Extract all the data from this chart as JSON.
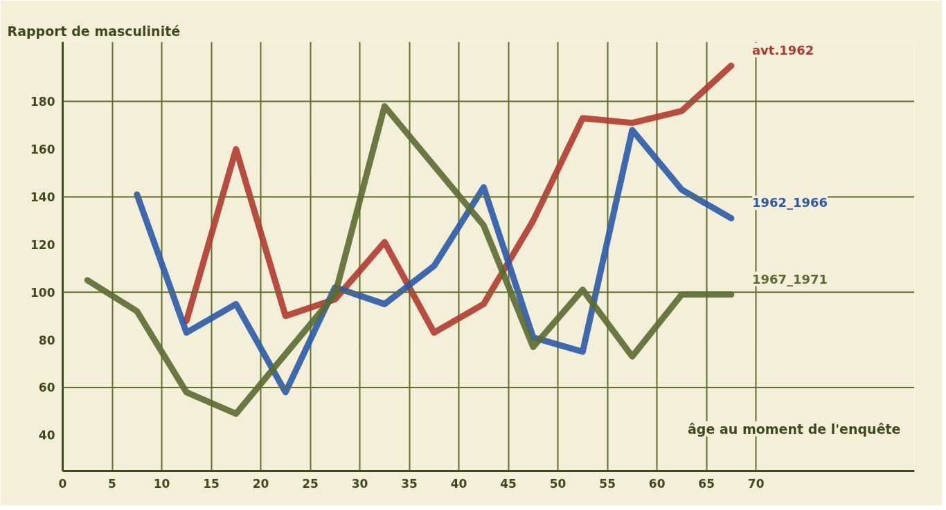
{
  "chart_data": {
    "type": "line",
    "ylabel": "Rapport de masculinité",
    "xlabel": "âge au moment de l'enquête",
    "xlim": [
      0,
      86
    ],
    "xticks": [
      0,
      5,
      10,
      15,
      20,
      25,
      30,
      35,
      40,
      45,
      50,
      55,
      60,
      65,
      70
    ],
    "ylim": [
      25,
      205
    ],
    "yticks": [
      40,
      60,
      80,
      100,
      120,
      140,
      160,
      180
    ],
    "grid": "x",
    "marker": "none",
    "line_style": "solid",
    "ref_lines": [
      {
        "axis": "y",
        "value": 60,
        "label": null,
        "color": "#5f6e2a"
      },
      {
        "axis": "y",
        "value": 100,
        "label": null,
        "color": "#5f6e2a"
      },
      {
        "axis": "y",
        "value": 140,
        "label": null,
        "color": "#5f6e2a"
      },
      {
        "axis": "y",
        "value": 180,
        "label": null,
        "color": "#5f6e2a"
      }
    ],
    "series": [
      {
        "name": "avt.1962",
        "color": "#b03a2e",
        "x": [
          12.5,
          17.5,
          22.5,
          27.5,
          32.5,
          37.5,
          42.5,
          47.5,
          52.5,
          57.5,
          62.5,
          67.5
        ],
        "values": [
          88,
          160,
          90,
          97,
          121,
          83,
          95,
          130,
          173,
          171,
          176,
          195
        ]
      },
      {
        "name": "1962_1966",
        "color": "#2a5aa8",
        "x": [
          7.5,
          12.5,
          17.5,
          22.5,
          27.5,
          32.5,
          37.5,
          42.5,
          47.5,
          52.5,
          57.5,
          62.5,
          67.5
        ],
        "values": [
          141,
          83,
          95,
          58,
          102,
          95,
          111,
          144,
          81,
          75,
          168,
          143,
          131
        ]
      },
      {
        "name": "1967_1971",
        "color": "#5a6b30",
        "x": [
          2.5,
          7.5,
          12.5,
          17.5,
          22.5,
          27.5,
          32.5,
          37.5,
          42.5,
          47.5,
          52.5,
          57.5,
          62.5,
          67.5
        ],
        "values": [
          105,
          92,
          58,
          49,
          74,
          99,
          178,
          153,
          128,
          77,
          101,
          73,
          99,
          99
        ]
      }
    ]
  }
}
